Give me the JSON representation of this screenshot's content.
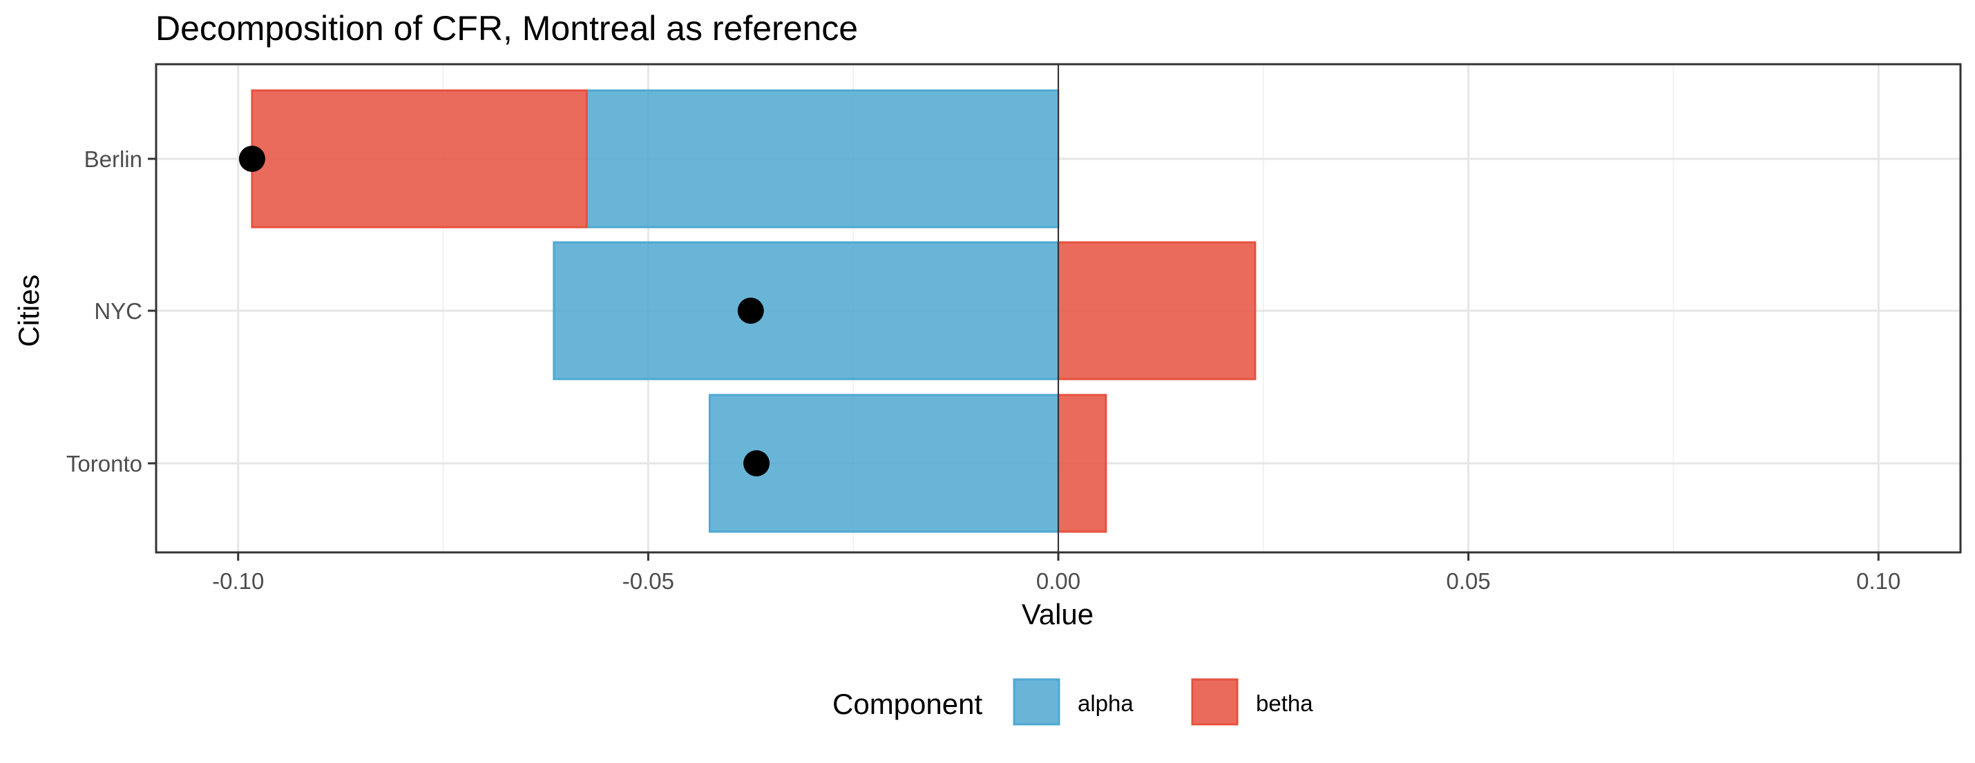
{
  "chart_data": {
    "type": "bar",
    "orientation": "horizontal",
    "stacked": true,
    "title": "Decomposition of CFR, Montreal as reference",
    "xlabel": "Value",
    "ylabel": "Cities",
    "categories": [
      "Berlin",
      "NYC",
      "Toronto"
    ],
    "series": [
      {
        "name": "alpha",
        "color": "#4FA8D1",
        "values": [
          -0.0575,
          -0.0615,
          -0.0425
        ]
      },
      {
        "name": "betha",
        "color": "#E6513F",
        "values": [
          -0.0408,
          0.024,
          0.0058
        ]
      }
    ],
    "points": {
      "description": "total",
      "color": "#000000",
      "values": [
        -0.0983,
        -0.0375,
        -0.0368
      ]
    },
    "xlim": [
      -0.11,
      0.11
    ],
    "xticks": [
      -0.1,
      -0.05,
      0.0,
      0.05,
      0.1
    ],
    "xtick_labels": [
      "-0.10",
      "-0.05",
      "0.00",
      "0.05",
      "0.10"
    ],
    "reference_line_x": 0,
    "grid": true,
    "legend": {
      "position": "bottom",
      "title": "Component",
      "entries": [
        "alpha",
        "betha"
      ]
    }
  }
}
